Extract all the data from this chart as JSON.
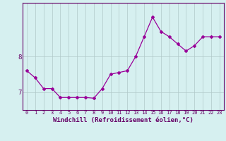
{
  "x": [
    0,
    1,
    2,
    3,
    4,
    5,
    6,
    7,
    8,
    9,
    10,
    11,
    12,
    13,
    14,
    15,
    16,
    17,
    18,
    19,
    20,
    21,
    22,
    23
  ],
  "y": [
    7.6,
    7.4,
    7.1,
    7.1,
    6.85,
    6.85,
    6.85,
    6.85,
    6.83,
    7.1,
    7.5,
    7.55,
    7.6,
    8.0,
    8.55,
    9.1,
    8.7,
    8.55,
    8.35,
    8.15,
    8.3,
    8.55,
    8.55,
    8.55
  ],
  "line_color": "#990099",
  "marker": "D",
  "markersize": 2.0,
  "linewidth": 0.9,
  "xlabel": "Windchill (Refroidissement éolien,°C)",
  "xlabel_fontsize": 6.5,
  "yticks": [
    7,
    8
  ],
  "ylim": [
    6.5,
    9.5
  ],
  "xlim": [
    -0.5,
    23.5
  ],
  "xticks": [
    0,
    1,
    2,
    3,
    4,
    5,
    6,
    7,
    8,
    9,
    10,
    11,
    12,
    13,
    14,
    15,
    16,
    17,
    18,
    19,
    20,
    21,
    22,
    23
  ],
  "xtick_fontsize": 5.0,
  "ytick_fontsize": 6.5,
  "bg_color": "#d6f0f0",
  "grid_color": "#b0c8c8",
  "tick_color": "#660066",
  "spine_color": "#660066"
}
